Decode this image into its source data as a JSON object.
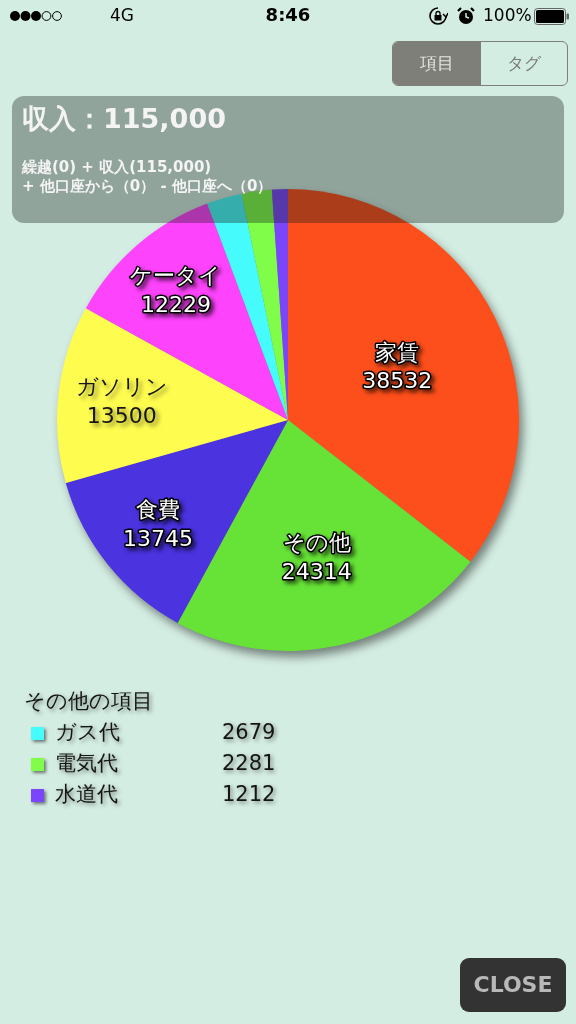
{
  "chart_data": {
    "type": "pie",
    "title": "収入：115,000",
    "subtitle": "繰越(0) + 収入(115,000)\n+ 他口座から（0） - 他口座へ（0）",
    "categories": [
      "家賃",
      "その他",
      "食費",
      "ガソリン",
      "ケータイ",
      "ガス代",
      "電気代",
      "水道代"
    ],
    "values": [
      38532,
      24314,
      13745,
      13500,
      12229,
      2679,
      2281,
      1212
    ],
    "colors": [
      "#fd4f1b",
      "#66e336",
      "#4b33e0",
      "#fefc4f",
      "#fd43fb",
      "#46fbfb",
      "#7ffd48",
      "#7a45fb"
    ],
    "data_labels": true,
    "legend": "bottom left",
    "legend_title": "その他の項目",
    "annotations": [
      "4G",
      "8:46",
      "100%",
      "項目",
      "タグ",
      "CLOSE"
    ]
  }
}
